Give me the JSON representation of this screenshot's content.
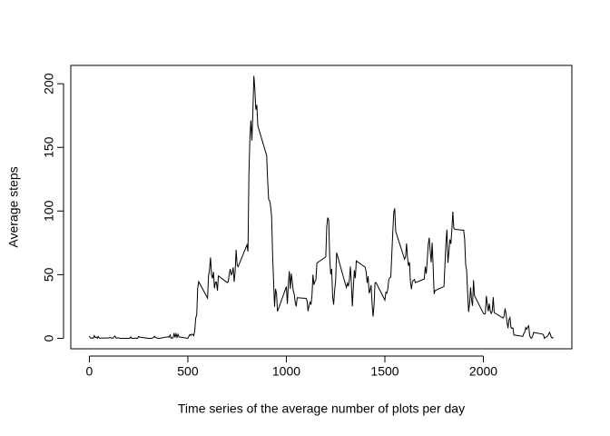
{
  "chart_data": {
    "type": "line",
    "xlabel": "Time series of the average number of plots per day",
    "ylabel": "Average steps",
    "color": "#000000",
    "x": [
      0,
      5,
      10,
      15,
      20,
      25,
      30,
      35,
      40,
      45,
      50,
      55,
      100,
      105,
      110,
      115,
      120,
      125,
      130,
      135,
      140,
      145,
      150,
      155,
      200,
      205,
      210,
      215,
      220,
      225,
      230,
      235,
      240,
      245,
      250,
      255,
      300,
      305,
      310,
      315,
      320,
      325,
      330,
      335,
      340,
      345,
      350,
      355,
      400,
      405,
      410,
      415,
      420,
      425,
      430,
      435,
      440,
      445,
      450,
      455,
      500,
      505,
      510,
      515,
      520,
      525,
      530,
      535,
      540,
      545,
      550,
      555,
      600,
      605,
      610,
      615,
      620,
      625,
      630,
      635,
      640,
      645,
      650,
      655,
      700,
      705,
      710,
      715,
      720,
      725,
      730,
      735,
      740,
      745,
      750,
      755,
      800,
      805,
      810,
      815,
      820,
      825,
      830,
      835,
      840,
      845,
      850,
      855,
      900,
      905,
      910,
      915,
      920,
      925,
      930,
      935,
      940,
      945,
      950,
      955,
      1000,
      1005,
      1010,
      1015,
      1020,
      1025,
      1030,
      1035,
      1040,
      1045,
      1050,
      1055,
      1100,
      1105,
      1110,
      1115,
      1120,
      1125,
      1130,
      1135,
      1140,
      1145,
      1150,
      1155,
      1200,
      1205,
      1210,
      1215,
      1220,
      1225,
      1230,
      1235,
      1240,
      1245,
      1250,
      1255,
      1300,
      1305,
      1310,
      1315,
      1320,
      1325,
      1330,
      1335,
      1340,
      1345,
      1350,
      1355,
      1400,
      1405,
      1410,
      1415,
      1420,
      1425,
      1430,
      1435,
      1440,
      1445,
      1450,
      1455,
      1500,
      1505,
      1510,
      1515,
      1520,
      1525,
      1530,
      1535,
      1540,
      1545,
      1550,
      1555,
      1600,
      1605,
      1610,
      1615,
      1620,
      1625,
      1630,
      1635,
      1640,
      1645,
      1650,
      1655,
      1700,
      1705,
      1710,
      1715,
      1720,
      1725,
      1730,
      1735,
      1740,
      1745,
      1750,
      1755,
      1800,
      1805,
      1810,
      1815,
      1820,
      1825,
      1830,
      1835,
      1840,
      1845,
      1850,
      1855,
      1900,
      1905,
      1910,
      1915,
      1920,
      1925,
      1930,
      1935,
      1940,
      1945,
      1950,
      1955,
      2000,
      2005,
      2010,
      2015,
      2020,
      2025,
      2030,
      2035,
      2040,
      2045,
      2050,
      2055,
      2100,
      2105,
      2110,
      2115,
      2120,
      2125,
      2130,
      2135,
      2140,
      2145,
      2150,
      2155,
      2200,
      2205,
      2210,
      2215,
      2220,
      2225,
      2230,
      2235,
      2240,
      2245,
      2250,
      2255,
      2300,
      2305,
      2310,
      2315,
      2320,
      2325,
      2330,
      2335,
      2340,
      2345,
      2350,
      2355
    ],
    "values": [
      1.7,
      0.3,
      0.1,
      0.2,
      0.1,
      2.1,
      0.5,
      0.9,
      0,
      1.5,
      0.3,
      0.1,
      0.3,
      0.7,
      0.2,
      0.3,
      0,
      1.1,
      1.8,
      0.2,
      0.2,
      0.4,
      0.3,
      0,
      0,
      0,
      1.1,
      0,
      0,
      0.1,
      0,
      0.2,
      0,
      0,
      1.5,
      0.9,
      0,
      0,
      0,
      0,
      0.2,
      0.6,
      1.6,
      0.6,
      0.5,
      0.1,
      0,
      0,
      1.2,
      0.9,
      2.6,
      0,
      0.3,
      0.4,
      4.1,
      0.7,
      3.5,
      0.8,
      3.1,
      1.1,
      0,
      1.6,
      3.0,
      2.2,
      3.3,
      3.0,
      2.1,
      6.1,
      16.0,
      18.3,
      39.5,
      44.5,
      31.5,
      49.3,
      53.8,
      63.5,
      50.0,
      47.1,
      52.2,
      39.3,
      44.0,
      44.2,
      37.4,
      49.0,
      43.8,
      44.4,
      50.5,
      54.5,
      49.9,
      51.0,
      55.7,
      44.3,
      52.3,
      69.5,
      57.8,
      56.2,
      73.4,
      68.2,
      129.4,
      157.5,
      171.2,
      155.4,
      177.3,
      206.2,
      195.9,
      179.6,
      183.4,
      167.0,
      143.5,
      124.0,
      109.1,
      108.1,
      103.7,
      96.0,
      66.2,
      45.2,
      24.8,
      38.8,
      35.0,
      21.1,
      40.6,
      27.0,
      42.4,
      52.7,
      38.9,
      50.8,
      44.3,
      37.4,
      34.7,
      28.3,
      25.1,
      31.9,
      31.4,
      29.7,
      21.3,
      25.5,
      28.4,
      26.5,
      33.4,
      50.0,
      42.0,
      44.6,
      46.0,
      59.2,
      63.9,
      87.7,
      94.8,
      92.8,
      63.4,
      50.2,
      54.5,
      32.4,
      26.5,
      37.7,
      45.1,
      67.3,
      42.3,
      39.9,
      43.3,
      41.0,
      46.2,
      56.4,
      42.8,
      25.1,
      40.0,
      53.5,
      47.3,
      60.8,
      55.8,
      52.0,
      43.6,
      48.7,
      35.5,
      37.5,
      41.8,
      27.5,
      17.1,
      26.1,
      43.6,
      43.8,
      30.0,
      36.1,
      35.5,
      38.8,
      46.0,
      47.8,
      48.1,
      65.3,
      82.9,
      98.7,
      102.1,
      84.0,
      62.1,
      64.1,
      74.5,
      63.2,
      56.9,
      59.8,
      43.9,
      38.6,
      44.7,
      45.5,
      46.2,
      43.7,
      46.6,
      56.3,
      50.7,
      61.2,
      73.4,
      79.0,
      68.9,
      59.7,
      75.1,
      56.5,
      34.8,
      37.5,
      40.7,
      58.0,
      74.7,
      85.3,
      59.3,
      67.8,
      77.7,
      74.2,
      85.3,
      99.5,
      86.6,
      85.6,
      84.9,
      77.8,
      58.0,
      53.4,
      36.3,
      20.7,
      27.4,
      40.0,
      30.2,
      25.5,
      45.7,
      33.5,
      19.6,
      19.0,
      19.3,
      33.3,
      26.8,
      21.2,
      27.3,
      21.3,
      19.5,
      21.3,
      32.3,
      20.2,
      15.9,
      17.2,
      23.5,
      19.2,
      12.5,
      8.0,
      14.7,
      16.3,
      8.7,
      7.8,
      8.1,
      2.6,
      1.5,
      3.7,
      4.8,
      8.5,
      7.1,
      8.7,
      9.8,
      2.2,
      0.3,
      0.1,
      1.6,
      4.6,
      3.3,
      2.8,
      0,
      0.8,
      1.0,
      1.6,
      2.6,
      4.7,
      3.3,
      0.6,
      0.2,
      1.1
    ],
    "xlim": [
      -94.2,
      2449.2
    ],
    "xticks": [
      0,
      500,
      1000,
      1500,
      2000
    ],
    "ylim": [
      -8.25,
      214.4
    ],
    "yticks": [
      0,
      50,
      100,
      150,
      200
    ]
  }
}
